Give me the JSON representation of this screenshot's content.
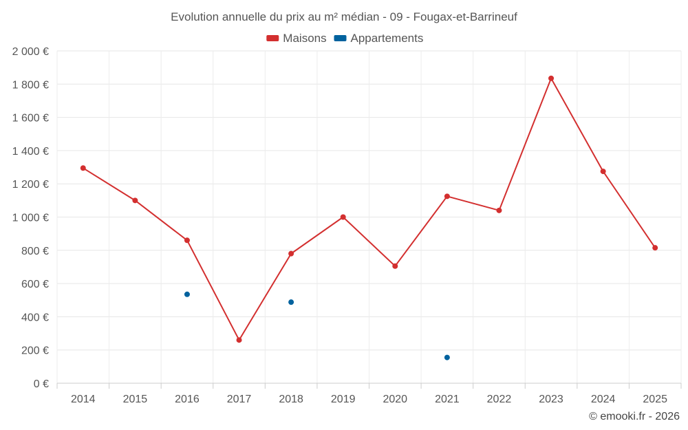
{
  "chart_data": {
    "type": "line",
    "title": "Evolution annuelle du prix au m² médian - 09 - Fougax-et-Barrineuf",
    "categories": [
      "2014",
      "2015",
      "2016",
      "2017",
      "2018",
      "2019",
      "2020",
      "2021",
      "2022",
      "2023",
      "2024",
      "2025"
    ],
    "ylim": [
      0,
      2000
    ],
    "y_ticks": [
      0,
      200,
      400,
      600,
      800,
      1000,
      1200,
      1400,
      1600,
      1800,
      2000
    ],
    "y_tick_labels": [
      "0 €",
      "200 €",
      "400 €",
      "600 €",
      "800 €",
      "1 000 €",
      "1 200 €",
      "1 400 €",
      "1 600 €",
      "1 800 €",
      "2 000 €"
    ],
    "grid": true,
    "legend_position": "top-center",
    "series": [
      {
        "name": "Maisons",
        "color": "#d32f2f",
        "style": "line",
        "values": [
          1295,
          1100,
          860,
          260,
          780,
          1000,
          705,
          1125,
          1040,
          1835,
          1275,
          815
        ]
      },
      {
        "name": "Appartements",
        "color": "#01629e",
        "style": "points",
        "values": [
          null,
          null,
          535,
          null,
          488,
          null,
          null,
          155,
          null,
          null,
          null,
          null
        ]
      }
    ]
  },
  "credit": "© emooki.fr - 2026"
}
